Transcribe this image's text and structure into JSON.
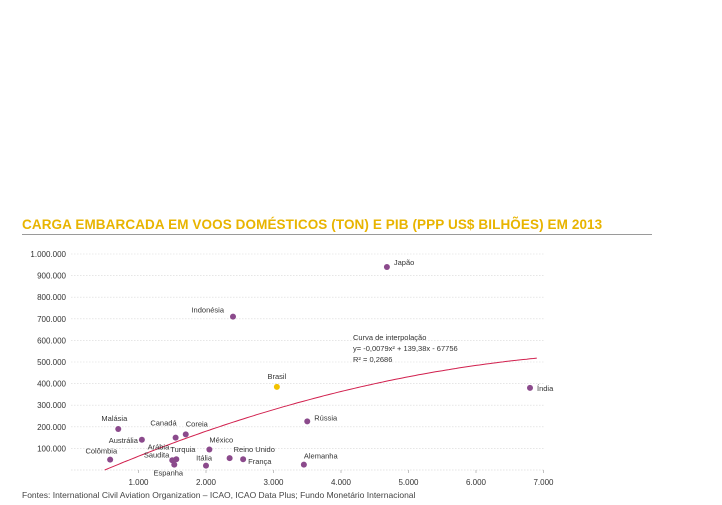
{
  "chart_data": {
    "type": "scatter",
    "title": "CARGA EMBARCADA EM VOOS DOMÉSTICOS (TON) E PIB (PPP US$ BILHÕES) EM 2013",
    "xlabel": "",
    "ylabel": "",
    "xlim": [
      0,
      7000
    ],
    "ylim": [
      0,
      1000000
    ],
    "x_ticks": [
      "1.000",
      "2.000",
      "3.000",
      "4.000",
      "5.000",
      "6.000",
      "7.000"
    ],
    "y_ticks": [
      "100.000",
      "200.000",
      "300.000",
      "400.000",
      "500.000",
      "600.000",
      "700.000",
      "800.000",
      "900.000",
      "1.000.000"
    ],
    "grid": true,
    "colors": {
      "points": "#8b4a8c",
      "highlight": "#f2c200",
      "curve": "#d11f4d",
      "title": "#e8b400"
    },
    "points": [
      {
        "label": "Japão",
        "x": 4680,
        "y": 940000
      },
      {
        "label": "Indonésia",
        "x": 2400,
        "y": 710000
      },
      {
        "label": "Brasil",
        "x": 3050,
        "y": 385000,
        "highlight": true
      },
      {
        "label": "Índia",
        "x": 6800,
        "y": 380000
      },
      {
        "label": "Rússia",
        "x": 3500,
        "y": 225000
      },
      {
        "label": "Malásia",
        "x": 700,
        "y": 190000
      },
      {
        "label": "Coreia",
        "x": 1700,
        "y": 165000
      },
      {
        "label": "Canadá",
        "x": 1550,
        "y": 150000
      },
      {
        "label": "Austrália",
        "x": 1050,
        "y": 140000
      },
      {
        "label": "México",
        "x": 2050,
        "y": 95000
      },
      {
        "label": "Reino Unido",
        "x": 2350,
        "y": 55000
      },
      {
        "label": "Colômbia",
        "x": 580,
        "y": 48000
      },
      {
        "label": "Turquia",
        "x": 1560,
        "y": 50000
      },
      {
        "label": "Arábia Saudita",
        "x": 1500,
        "y": 45000
      },
      {
        "label": "França",
        "x": 2550,
        "y": 50000
      },
      {
        "label": "Alemanha",
        "x": 3450,
        "y": 25000
      },
      {
        "label": "Espanha",
        "x": 1530,
        "y": 25000
      },
      {
        "label": "Itália",
        "x": 2000,
        "y": 20000
      }
    ],
    "curve": {
      "name": "Curva de interpolação",
      "equation": "y= -0,0079x² + 139,38x - 67756",
      "r2": "R² = 0,2686",
      "a": -0.0079,
      "b": 139.38,
      "c": -67756,
      "x_range": [
        500,
        6900
      ]
    },
    "source": "Fontes: International Civil Aviation Organization – ICAO, ICAO Data Plus; Fundo Monetário Internacional"
  }
}
